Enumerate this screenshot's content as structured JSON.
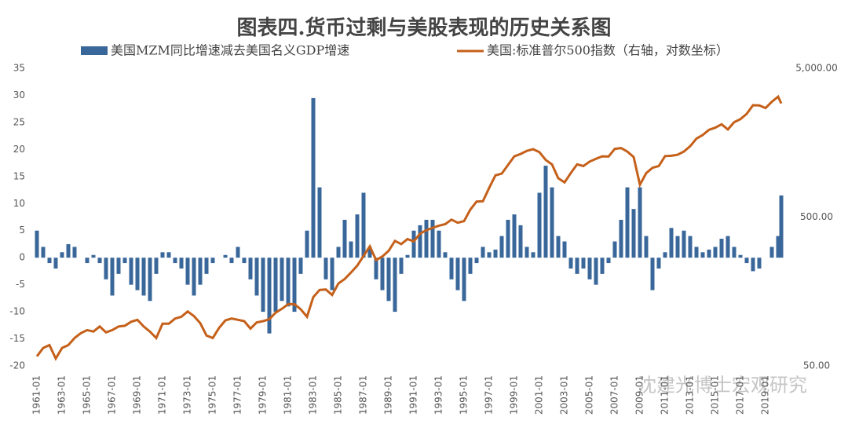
{
  "chart_data": {
    "type": "bar-line",
    "title": "图表四.货币过剩与美股表现的历史关系图",
    "watermark": "沈建光博士宏观研究",
    "legend": "top",
    "x": [
      "1961-01",
      "1961-07",
      "1962-01",
      "1962-07",
      "1963-01",
      "1963-07",
      "1964-01",
      "1964-07",
      "1965-01",
      "1965-07",
      "1966-01",
      "1966-07",
      "1967-01",
      "1967-07",
      "1968-01",
      "1968-07",
      "1969-01",
      "1969-07",
      "1970-01",
      "1970-07",
      "1971-01",
      "1971-07",
      "1972-01",
      "1972-07",
      "1973-01",
      "1973-07",
      "1974-01",
      "1974-07",
      "1975-01",
      "1975-07",
      "1976-01",
      "1976-07",
      "1977-01",
      "1977-07",
      "1978-01",
      "1978-07",
      "1979-01",
      "1979-07",
      "1980-01",
      "1980-07",
      "1981-01",
      "1981-07",
      "1982-01",
      "1982-07",
      "1983-01",
      "1983-07",
      "1984-01",
      "1984-07",
      "1985-01",
      "1985-07",
      "1986-01",
      "1986-07",
      "1987-01",
      "1987-07",
      "1988-01",
      "1988-07",
      "1989-01",
      "1989-07",
      "1990-01",
      "1990-07",
      "1991-01",
      "1991-07",
      "1992-01",
      "1992-07",
      "1993-01",
      "1993-07",
      "1994-01",
      "1994-07",
      "1995-01",
      "1995-07",
      "1996-01",
      "1996-07",
      "1997-01",
      "1997-07",
      "1998-01",
      "1998-07",
      "1999-01",
      "1999-07",
      "2000-01",
      "2000-07",
      "2001-01",
      "2001-07",
      "2002-01",
      "2002-07",
      "2003-01",
      "2003-07",
      "2004-01",
      "2004-07",
      "2005-01",
      "2005-07",
      "2006-01",
      "2006-07",
      "2007-01",
      "2007-07",
      "2008-01",
      "2008-07",
      "2009-01",
      "2009-07",
      "2010-01",
      "2010-07",
      "2011-01",
      "2011-07",
      "2012-01",
      "2012-07",
      "2013-01",
      "2013-07",
      "2014-01",
      "2014-07",
      "2015-01",
      "2015-07",
      "2016-01",
      "2016-07",
      "2017-01",
      "2017-07",
      "2018-01",
      "2018-07",
      "2019-01",
      "2019-07",
      "2020-01",
      "2020-04"
    ],
    "xlim": [
      "1961-01",
      "2020-07"
    ],
    "xticks": [
      "1961-01",
      "1963-01",
      "1965-01",
      "1967-01",
      "1969-01",
      "1971-01",
      "1973-01",
      "1975-01",
      "1977-01",
      "1979-01",
      "1981-01",
      "1983-01",
      "1985-01",
      "1987-01",
      "1989-01",
      "1991-01",
      "1993-01",
      "1995-01",
      "1997-01",
      "1999-01",
      "2001-01",
      "2003-01",
      "2005-01",
      "2007-01",
      "2009-01",
      "2011-01",
      "2013-01",
      "2015-01",
      "2017-01",
      "2019-01"
    ],
    "ylim": [
      -20,
      35
    ],
    "yticks": [
      35,
      30,
      25,
      20,
      15,
      10,
      5,
      0,
      -5,
      -10,
      -15,
      -20
    ],
    "y2lim": [
      50,
      5000
    ],
    "y2log": true,
    "y2ticks": [
      {
        "value": 5000,
        "label": "5,000.00"
      },
      {
        "value": 500,
        "label": "500.00"
      },
      {
        "value": 50,
        "label": "50.00"
      }
    ],
    "series": [
      {
        "name": "美国MZM同比增速减去美国名义GDP增速",
        "type": "bar",
        "color": "#3a679a",
        "values": [
          5,
          2,
          -1,
          -2,
          1,
          2.5,
          2,
          0,
          -1,
          0.5,
          -1,
          -4,
          -7,
          -3,
          -1,
          -5,
          -6,
          -7,
          -8,
          -3,
          1,
          1,
          -1,
          -2,
          -5,
          -7,
          -5,
          -3,
          -1,
          0,
          0.5,
          -1,
          2,
          -1,
          -4,
          -7,
          -10,
          -14,
          -10,
          -8,
          -9,
          -10,
          -3,
          5,
          29.5,
          13,
          -4,
          -6,
          2,
          7,
          3,
          8,
          12,
          2,
          -4,
          -6,
          -8,
          -10,
          -3,
          0.5,
          5,
          6,
          7,
          7,
          5,
          1,
          -4,
          -6,
          -8,
          -3,
          -1,
          2,
          1,
          1.5,
          4,
          7,
          8,
          6,
          2,
          1,
          12,
          17,
          13,
          4,
          3,
          -2,
          -3,
          -2,
          -4,
          -5,
          -3,
          -1,
          3,
          7,
          13,
          9,
          13,
          4,
          -6,
          -2,
          1,
          5.5,
          4,
          5,
          4,
          2,
          1,
          1.5,
          2,
          3.5,
          4,
          2,
          0.5,
          -1,
          -2.5,
          -2,
          0,
          2,
          4,
          11.5
        ]
      },
      {
        "name": "美国:标准普尔500指数（右轴，对数坐标）",
        "type": "line",
        "axis": "y2",
        "color": "#c5601a",
        "values": [
          58,
          66,
          69,
          56,
          66,
          69,
          77,
          83,
          87,
          85,
          92,
          84,
          87,
          92,
          93,
          99,
          102,
          92,
          85,
          77,
          96,
          96,
          104,
          107,
          116,
          108,
          97,
          80,
          77,
          90,
          101,
          104,
          102,
          100,
          89,
          98,
          100,
          103,
          114,
          121,
          130,
          130,
          120,
          107,
          145,
          162,
          163,
          150,
          179,
          192,
          212,
          236,
          274,
          318,
          257,
          272,
          297,
          346,
          329,
          356,
          343,
          387,
          408,
          424,
          438,
          448,
          481,
          458,
          470,
          562,
          636,
          639,
          786,
          954,
          980,
          1120,
          1280,
          1328,
          1394,
          1430,
          1366,
          1211,
          1130,
          912,
          855,
          990,
          1131,
          1101,
          1181,
          1234,
          1280,
          1276,
          1438,
          1455,
          1378,
          1267,
          825,
          987,
          1073,
          1101,
          1286,
          1292,
          1312,
          1379,
          1498,
          1685,
          1782,
          1930,
          1995,
          2103,
          1940,
          2173,
          2279,
          2470,
          2823,
          2816,
          2704,
          2980,
          3226,
          2900
        ]
      }
    ]
  }
}
